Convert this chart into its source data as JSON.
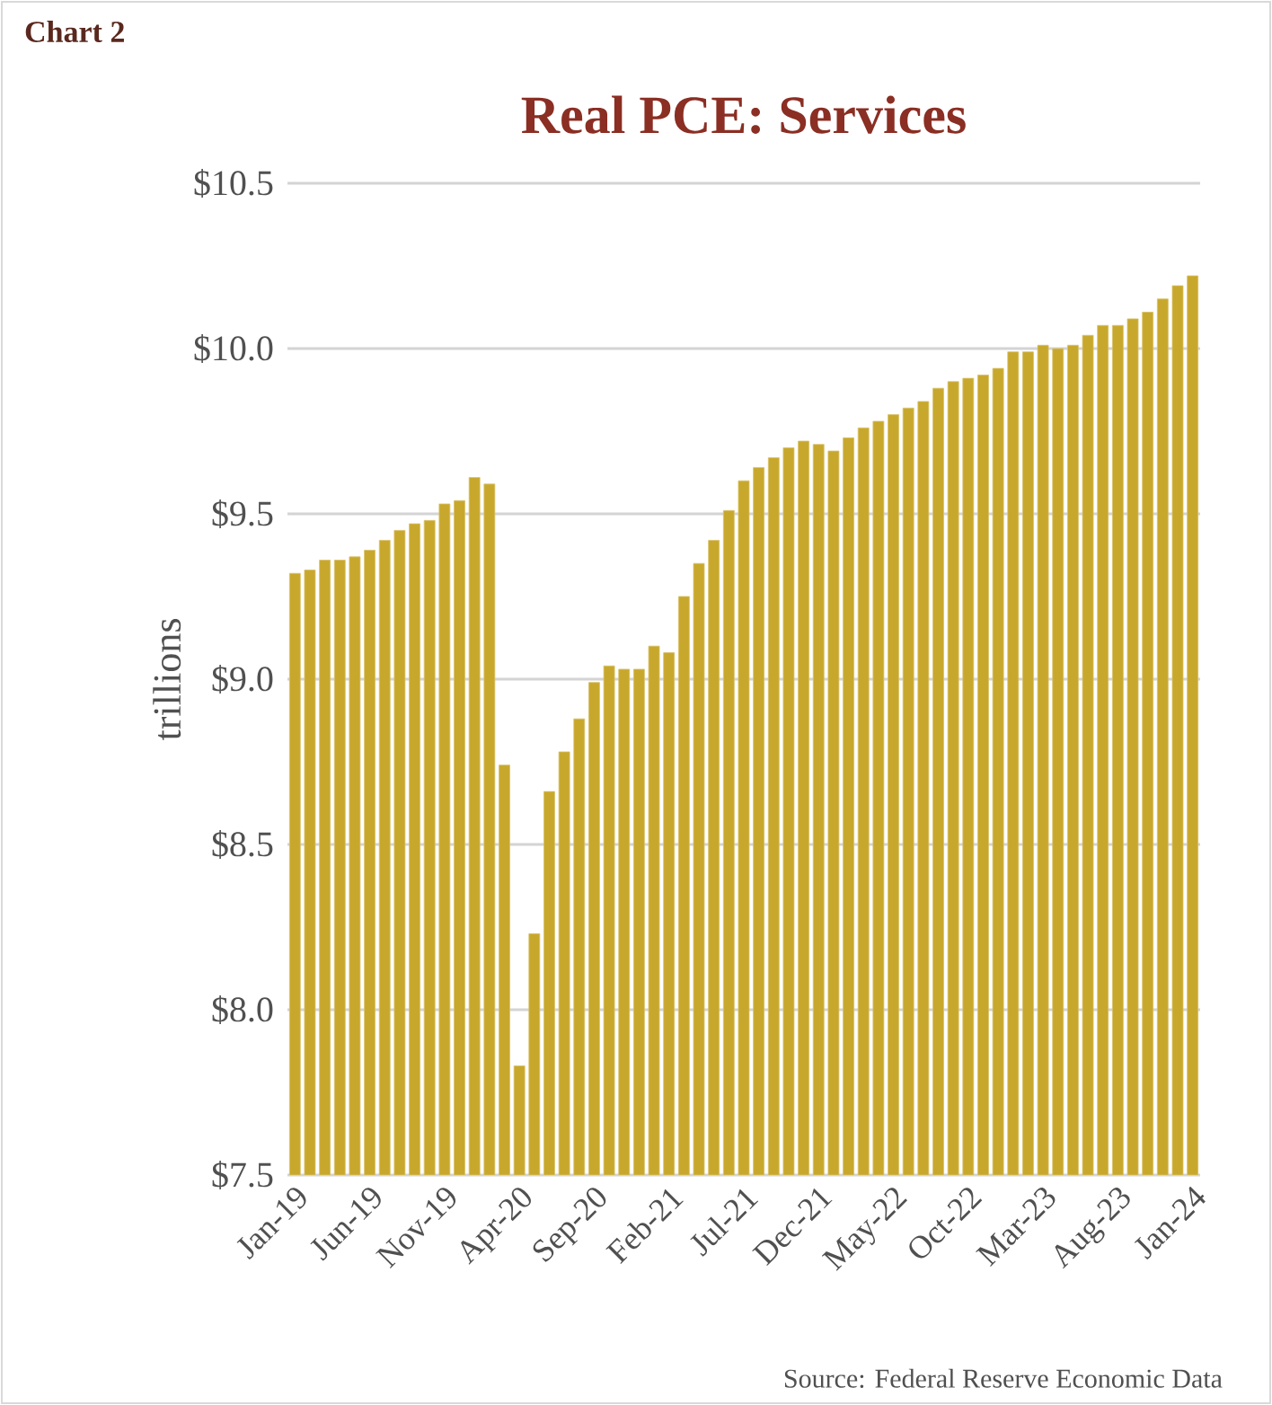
{
  "chart_data": {
    "type": "bar",
    "title": "Real PCE: Services",
    "ylabel": "trillions",
    "categories": [
      "Jan-19",
      null,
      null,
      null,
      null,
      "Jun-19",
      null,
      null,
      null,
      null,
      "Nov-19",
      null,
      null,
      null,
      null,
      "Apr-20",
      null,
      null,
      null,
      null,
      "Sep-20",
      null,
      null,
      null,
      null,
      "Feb-21",
      null,
      null,
      null,
      null,
      "Jul-21",
      null,
      null,
      null,
      null,
      "Dec-21",
      null,
      null,
      null,
      null,
      "May-22",
      null,
      null,
      null,
      null,
      "Oct-22",
      null,
      null,
      null,
      null,
      "Mar-23",
      null,
      null,
      null,
      null,
      "Aug-23",
      null,
      null,
      null,
      null,
      "Jan-24"
    ],
    "values": [
      9.32,
      9.33,
      9.36,
      9.36,
      9.37,
      9.39,
      9.42,
      9.45,
      9.47,
      9.48,
      9.53,
      9.54,
      9.61,
      9.59,
      8.74,
      7.83,
      8.23,
      8.66,
      8.78,
      8.88,
      8.99,
      9.04,
      9.03,
      9.03,
      9.1,
      9.08,
      9.25,
      9.35,
      9.42,
      9.51,
      9.6,
      9.64,
      9.67,
      9.7,
      9.72,
      9.71,
      9.69,
      9.73,
      9.76,
      9.78,
      9.8,
      9.82,
      9.84,
      9.88,
      9.9,
      9.91,
      9.92,
      9.94,
      9.99,
      9.99,
      10.01,
      10.0,
      10.01,
      10.04,
      10.07,
      10.07,
      10.09,
      10.11,
      10.15,
      10.19,
      10.22
    ],
    "color": "#c8a82c",
    "ylim": [
      7.5,
      10.5
    ],
    "yticks": [
      {
        "value": 7.5,
        "label": "$7.5"
      },
      {
        "value": 8.0,
        "label": "$8.0"
      },
      {
        "value": 8.5,
        "label": "$8.5"
      },
      {
        "value": 9.0,
        "label": "$9.0"
      },
      {
        "value": 9.5,
        "label": "$9.5"
      },
      {
        "value": 10.0,
        "label": "$10.0"
      },
      {
        "value": 10.5,
        "label": "$10.5"
      }
    ],
    "grid": "y",
    "annotations": [
      "Chart 2",
      "Source: Federal Reserve Economic Data"
    ]
  }
}
